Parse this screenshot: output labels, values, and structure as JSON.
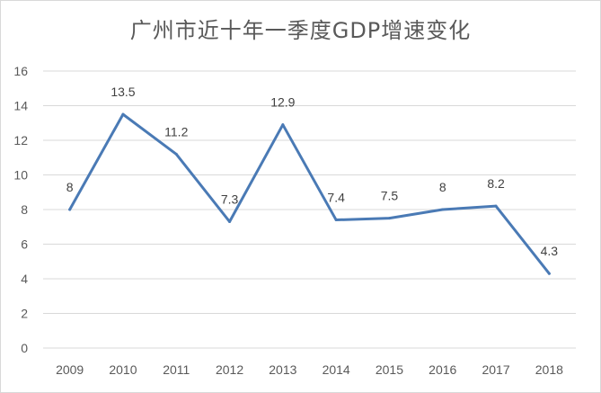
{
  "chart_data": {
    "type": "line",
    "title": "广州市近十年一季度GDP增速变化",
    "categories": [
      "2009",
      "2010",
      "2011",
      "2012",
      "2013",
      "2014",
      "2015",
      "2016",
      "2017",
      "2018"
    ],
    "series": [
      {
        "values": [
          8,
          13.5,
          11.2,
          7.3,
          12.9,
          7.4,
          7.5,
          8,
          8.2,
          4.3
        ],
        "data_labels": [
          "8",
          "13.5",
          "11.2",
          "7.3",
          "12.9",
          "7.4",
          "7.5",
          "8",
          "8.2",
          "4.3"
        ],
        "color": "#4a7ab5"
      }
    ],
    "y_ticks": [
      "0",
      "2",
      "4",
      "6",
      "8",
      "10",
      "12",
      "14",
      "16"
    ],
    "ylim": [
      0,
      16
    ],
    "grid": "horizontal",
    "legend": "none"
  }
}
